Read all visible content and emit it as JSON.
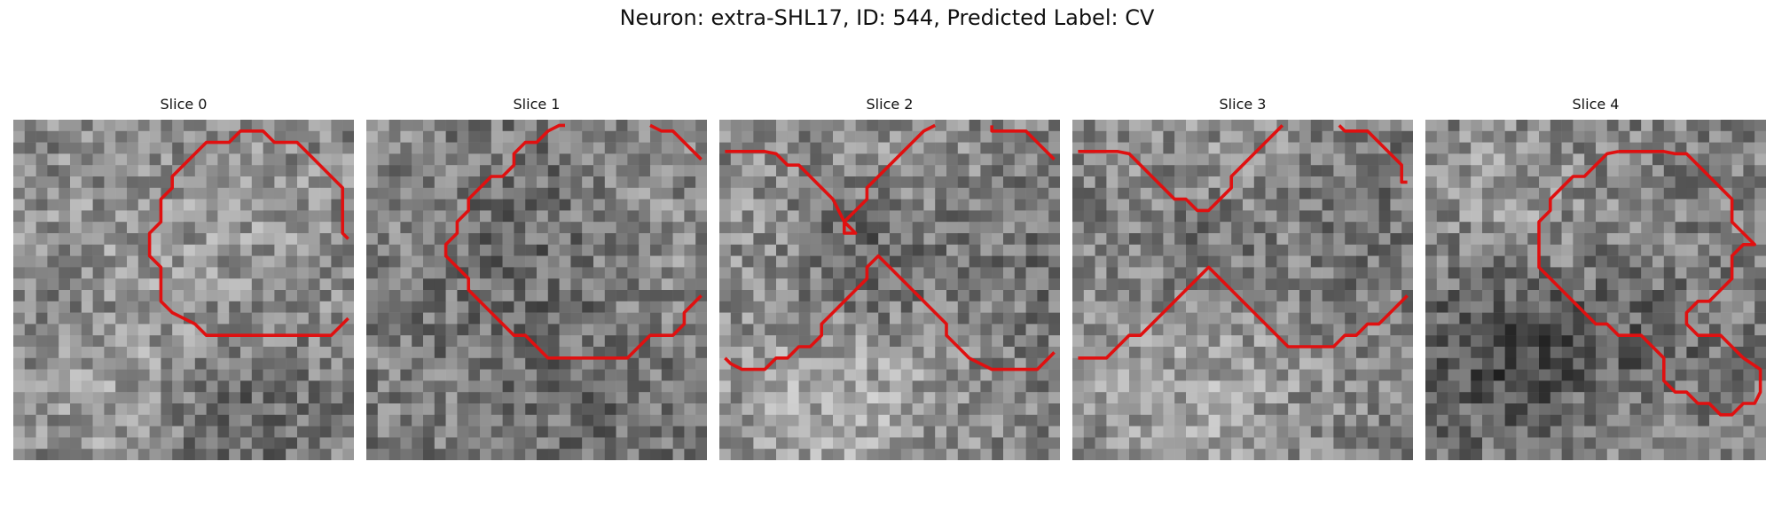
{
  "figure": {
    "title": "Neuron: extra-SHL17, ID: 544, Predicted Label: CV",
    "contour_color": "#e01010"
  },
  "slices": [
    {
      "title": "Slice 0"
    },
    {
      "title": "Slice 1"
    },
    {
      "title": "Slice 2"
    },
    {
      "title": "Slice 3"
    },
    {
      "title": "Slice 4"
    }
  ]
}
